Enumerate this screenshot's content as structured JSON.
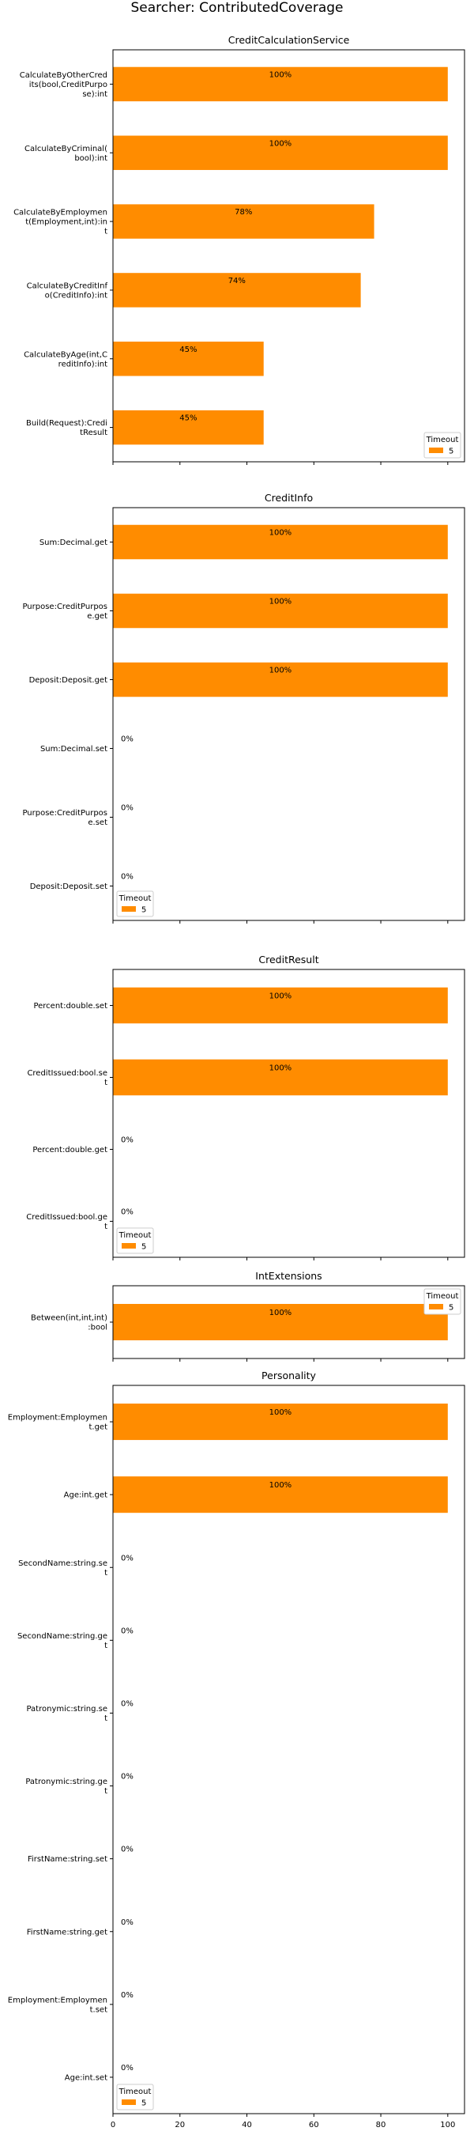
{
  "suptitle": "Searcher: ContributedCoverage",
  "bar_color": "#ff8c00",
  "legend": {
    "title": "Timeout",
    "label": "5"
  },
  "chart_data": [
    {
      "type": "bar",
      "orientation": "horizontal",
      "title": "CreditCalculationService",
      "categories": [
        "CalculateByOtherCredits(bool,CreditPurpose):int",
        "CalculateByCriminal(bool):int",
        "CalculateByEmployment(Employment,int):int",
        "CalculateByCreditInfo(CreditInfo):int",
        "CalculateByAge(int,CreditInfo):int",
        "Build(Request):CreditResult"
      ],
      "label_lines": [
        [
          "CalculateByOtherCred",
          "its(bool,CreditPurpo",
          "se):int"
        ],
        [
          "CalculateByCriminal(",
          "bool):int"
        ],
        [
          "CalculateByEmploymen",
          "t(Employment,int):in",
          "t"
        ],
        [
          "CalculateByCreditInf",
          "o(CreditInfo):int"
        ],
        [
          "CalculateByAge(int,C",
          "reditInfo):int"
        ],
        [
          "Build(Request):Credi",
          "tResult"
        ]
      ],
      "values": [
        100,
        100,
        78,
        74,
        45,
        45
      ],
      "bar_labels": [
        "100%",
        "100%",
        "78%",
        "74%",
        "45%",
        "45%"
      ],
      "xlim": [
        0,
        105
      ],
      "legend_loc": "lower-right"
    },
    {
      "type": "bar",
      "orientation": "horizontal",
      "title": "CreditInfo",
      "categories": [
        "Sum:Decimal.get",
        "Purpose:CreditPurpose.get",
        "Deposit:Deposit.get",
        "Sum:Decimal.set",
        "Purpose:CreditPurpose.set",
        "Deposit:Deposit.set"
      ],
      "label_lines": [
        [
          "Sum:Decimal.get"
        ],
        [
          "Purpose:CreditPurpos",
          "e.get"
        ],
        [
          "Deposit:Deposit.get"
        ],
        [
          "Sum:Decimal.set"
        ],
        [
          "Purpose:CreditPurpos",
          "e.set"
        ],
        [
          "Deposit:Deposit.set"
        ]
      ],
      "values": [
        100,
        100,
        100,
        0,
        0,
        0
      ],
      "bar_labels": [
        "100%",
        "100%",
        "100%",
        "0%",
        "0%",
        "0%"
      ],
      "xlim": [
        0,
        105
      ],
      "legend_loc": "lower-left"
    },
    {
      "type": "bar",
      "orientation": "horizontal",
      "title": "CreditResult",
      "categories": [
        "Percent:double.set",
        "CreditIssued:bool.set",
        "Percent:double.get",
        "CreditIssued:bool.get"
      ],
      "label_lines": [
        [
          "Percent:double.set"
        ],
        [
          "CreditIssued:bool.se",
          "t"
        ],
        [
          "Percent:double.get"
        ],
        [
          "CreditIssued:bool.ge",
          "t"
        ]
      ],
      "values": [
        100,
        100,
        0,
        0
      ],
      "bar_labels": [
        "100%",
        "100%",
        "0%",
        "0%"
      ],
      "xlim": [
        0,
        105
      ],
      "legend_loc": "lower-left"
    },
    {
      "type": "bar",
      "orientation": "horizontal",
      "title": "IntExtensions",
      "categories": [
        "Between(int,int,int):bool"
      ],
      "label_lines": [
        [
          "Between(int,int,int)",
          ":bool"
        ]
      ],
      "values": [
        100
      ],
      "bar_labels": [
        "100%"
      ],
      "xlim": [
        0,
        105
      ],
      "legend_loc": "upper-right"
    },
    {
      "type": "bar",
      "orientation": "horizontal",
      "title": "Personality",
      "categories": [
        "Employment:Employment.get",
        "Age:int.get",
        "SecondName:string.set",
        "SecondName:string.get",
        "Patronymic:string.set",
        "Patronymic:string.get",
        "FirstName:string.set",
        "FirstName:string.get",
        "Employment:Employment.set",
        "Age:int.set"
      ],
      "label_lines": [
        [
          "Employment:Employmen",
          "t.get"
        ],
        [
          "Age:int.get"
        ],
        [
          "SecondName:string.se",
          "t"
        ],
        [
          "SecondName:string.ge",
          "t"
        ],
        [
          "Patronymic:string.se",
          "t"
        ],
        [
          "Patronymic:string.ge",
          "t"
        ],
        [
          "FirstName:string.set"
        ],
        [
          "FirstName:string.get"
        ],
        [
          "Employment:Employmen",
          "t.set"
        ],
        [
          "Age:int.set"
        ]
      ],
      "values": [
        100,
        100,
        0,
        0,
        0,
        0,
        0,
        0,
        0,
        0
      ],
      "bar_labels": [
        "100%",
        "100%",
        "0%",
        "0%",
        "0%",
        "0%",
        "0%",
        "0%",
        "0%",
        "0%"
      ],
      "xlim": [
        0,
        105
      ],
      "legend_loc": "lower-left",
      "xticks": [
        0,
        20,
        40,
        60,
        80,
        100
      ]
    }
  ]
}
